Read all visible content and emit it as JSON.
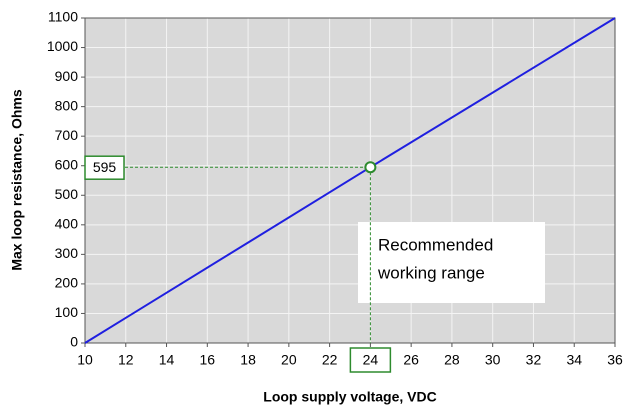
{
  "chart_data": {
    "type": "line",
    "x": [
      10,
      24,
      36
    ],
    "series": [
      {
        "color": "#1f1fe0",
        "values": [
          0,
          595,
          1100
        ]
      }
    ],
    "xlabel": "Loop supply voltage, VDC",
    "ylabel": "Max loop resistance, Ohms",
    "xlim": [
      10,
      36
    ],
    "ylim": [
      0,
      1100
    ],
    "xticks": [
      10,
      12,
      14,
      16,
      18,
      20,
      22,
      24,
      26,
      28,
      30,
      32,
      34,
      36
    ],
    "yticks": [
      0,
      100,
      200,
      300,
      400,
      500,
      600,
      700,
      800,
      900,
      1000,
      1100
    ],
    "grid": true,
    "marker": {
      "x": 24,
      "y": 595,
      "color": "#2e8b2e"
    },
    "annotation": [
      "Recommended",
      "working range"
    ]
  }
}
